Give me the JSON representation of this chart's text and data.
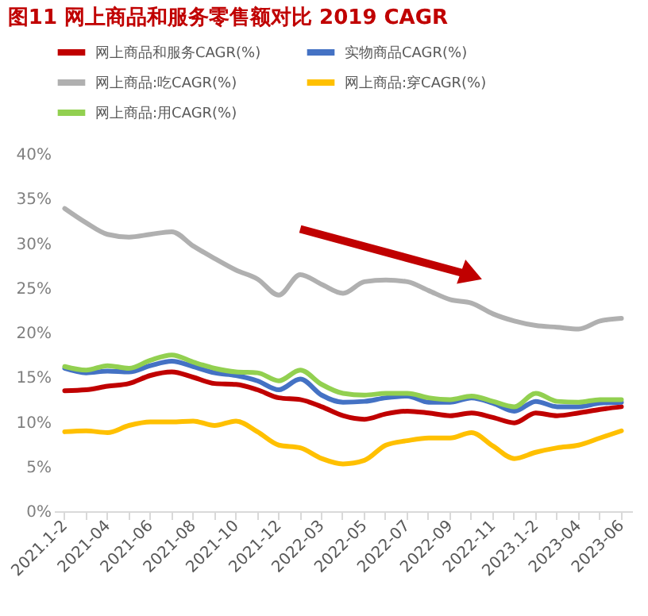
{
  "chart_data": {
    "type": "line",
    "title": "图11  网上商品和服务零售额对比 2019 CAGR",
    "categories": [
      "2021.1-2",
      null,
      "2021-04",
      null,
      "2021-06",
      null,
      "2021-08",
      null,
      "2021-10",
      null,
      "2021-12",
      null,
      "2022-03",
      null,
      "2022-05",
      null,
      "2022-07",
      null,
      "2022-09",
      null,
      "2022-11",
      null,
      "2023.1-2",
      null,
      "2023-04",
      null,
      "2023-06"
    ],
    "series": [
      {
        "name": "网上商品和服务CAGR(%)",
        "color": "#c00000",
        "values": [
          13.5,
          13.6,
          14.0,
          14.3,
          15.2,
          15.6,
          15.0,
          14.3,
          14.2,
          13.6,
          12.7,
          12.5,
          11.7,
          10.7,
          10.3,
          10.9,
          11.2,
          11.0,
          10.7,
          11.0,
          10.5,
          9.9,
          11.0,
          10.7,
          11.0,
          11.4,
          11.7
        ]
      },
      {
        "name": "实物商品CAGR(%)",
        "color": "#4472c4",
        "values": [
          16.0,
          15.5,
          15.7,
          15.6,
          16.3,
          16.8,
          16.2,
          15.5,
          15.2,
          14.6,
          13.6,
          14.8,
          13.0,
          12.2,
          12.3,
          12.7,
          12.9,
          12.2,
          12.2,
          12.7,
          12.1,
          11.2,
          12.3,
          11.7,
          11.7,
          12.1,
          12.2
        ]
      },
      {
        "name": "网上商品:吃CAGR(%)",
        "color": "#b0b0b0",
        "values": [
          33.9,
          32.3,
          31.0,
          30.7,
          31.0,
          31.3,
          29.7,
          28.3,
          27.0,
          26.0,
          24.2,
          26.5,
          25.4,
          24.4,
          25.7,
          25.9,
          25.7,
          24.7,
          23.7,
          23.3,
          22.1,
          21.3,
          20.8,
          20.6,
          20.4,
          21.3,
          21.6
        ]
      },
      {
        "name": "网上商品:穿CAGR(%)",
        "color": "#ffc000",
        "values": [
          8.9,
          9.0,
          8.8,
          9.6,
          10.0,
          10.0,
          10.1,
          9.6,
          10.1,
          8.9,
          7.4,
          7.1,
          5.9,
          5.3,
          5.7,
          7.4,
          7.9,
          8.2,
          8.2,
          8.8,
          7.3,
          5.9,
          6.6,
          7.1,
          7.4,
          8.2,
          9.0
        ]
      },
      {
        "name": "网上商品:用CAGR(%)",
        "color": "#92d050",
        "values": [
          16.2,
          15.8,
          16.3,
          16.0,
          16.9,
          17.5,
          16.7,
          16.0,
          15.6,
          15.5,
          14.6,
          15.8,
          14.2,
          13.2,
          13.0,
          13.2,
          13.2,
          12.7,
          12.5,
          12.9,
          12.3,
          11.7,
          13.2,
          12.3,
          12.2,
          12.5,
          12.5
        ]
      }
    ],
    "ylim": [
      0,
      40
    ],
    "yticks": [
      {
        "value": 0,
        "label": "0%"
      },
      {
        "value": 5,
        "label": "5%"
      },
      {
        "value": 10,
        "label": "10%"
      },
      {
        "value": 15,
        "label": "15%"
      },
      {
        "value": 20,
        "label": "20%"
      },
      {
        "value": 25,
        "label": "25%"
      },
      {
        "value": 30,
        "label": "30%"
      },
      {
        "value": 35,
        "label": "35%"
      },
      {
        "value": 40,
        "label": "40%"
      }
    ],
    "grid": false,
    "legend": "top",
    "marker": "none",
    "line_style": "solid"
  }
}
